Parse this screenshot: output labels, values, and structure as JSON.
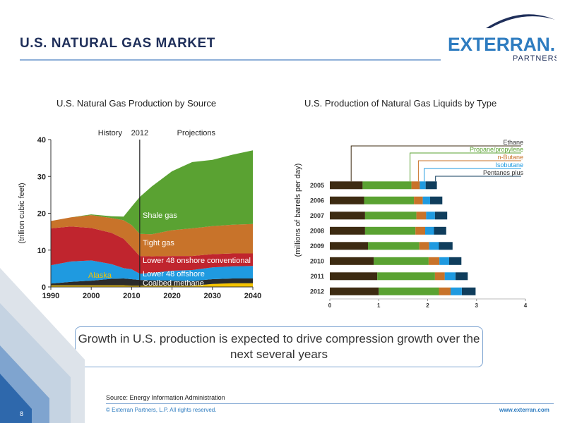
{
  "slide": {
    "title": "U.S. NATURAL GAS MARKET",
    "logo_main": "EXTERRAN.",
    "logo_sub": "PARTNERS",
    "callout": "Growth in U.S. production is expected to drive compression growth over the next several years",
    "source": "Source: Energy Information Administration",
    "copyright": "© Exterran Partners, L.P. All rights reserved.",
    "website": "www.exterran.com",
    "page_number": "8",
    "colors": {
      "brand_blue": "#2e7cc0",
      "title_navy": "#1f2f5a"
    }
  },
  "chart_data": [
    {
      "type": "area",
      "title": "U.S. Natural Gas Production by Source",
      "ylabel": "(trillion cubic feet)",
      "xlim": [
        1990,
        2040
      ],
      "ylim": [
        0,
        40
      ],
      "x_ticks": [
        "1990",
        "2000",
        "2010",
        "2020",
        "2030",
        "2040"
      ],
      "y_ticks": [
        "0",
        "10",
        "20",
        "30",
        "40"
      ],
      "annotations": {
        "history": "History",
        "year": "2012",
        "projections": "Projections",
        "marker_year": 2012
      },
      "x": [
        1990,
        1995,
        2000,
        2005,
        2008,
        2010,
        2012,
        2015,
        2020,
        2025,
        2030,
        2035,
        2040
      ],
      "series": [
        {
          "name": "Alaska",
          "color": "#f5c400",
          "values": [
            0.4,
            0.4,
            0.4,
            0.4,
            0.4,
            0.3,
            0.3,
            0.3,
            0.3,
            0.3,
            0.8,
            1.0,
            1.0
          ]
        },
        {
          "name": "Coalbed methane",
          "color": "#2b2b2b",
          "values": [
            0.5,
            1.0,
            1.3,
            1.8,
            1.9,
            1.8,
            1.6,
            1.5,
            1.4,
            1.3,
            1.3,
            1.3,
            1.3
          ]
        },
        {
          "name": "Lower 48 offshore",
          "color": "#1f9ae0",
          "values": [
            5.0,
            5.5,
            5.5,
            4.0,
            2.8,
            2.7,
            1.7,
            2.0,
            2.7,
            3.0,
            3.2,
            3.3,
            3.4
          ]
        },
        {
          "name": "Lower 48 onshore conventional",
          "color": "#c0252e",
          "values": [
            10.0,
            9.5,
            8.8,
            8.5,
            8.0,
            6.0,
            4.8,
            4.5,
            4.0,
            3.8,
            3.6,
            3.5,
            3.4
          ]
        },
        {
          "name": "Tight gas",
          "color": "#c8732a",
          "values": [
            2.0,
            2.5,
            3.5,
            4.0,
            5.0,
            6.0,
            6.0,
            6.0,
            7.0,
            7.5,
            7.6,
            7.8,
            8.0
          ]
        },
        {
          "name": "Shale gas",
          "color": "#5aa232",
          "values": [
            0.0,
            0.0,
            0.2,
            0.5,
            1.0,
            5.0,
            10.0,
            13.0,
            16.0,
            18.0,
            18.0,
            19.0,
            20.0
          ]
        }
      ]
    },
    {
      "type": "bar",
      "orientation": "horizontal",
      "stacked": true,
      "title": "U.S. Production of Natural Gas Liquids by Type",
      "ylabel": "(millions of barrels per day)",
      "xlim": [
        0,
        4
      ],
      "x_ticks": [
        "0",
        "1",
        "2",
        "3",
        "4"
      ],
      "categories": [
        "2005",
        "2006",
        "2007",
        "2008",
        "2009",
        "2010",
        "2011",
        "2012"
      ],
      "series": [
        {
          "name": "Ethane",
          "color": "#3d2b12",
          "values": [
            0.67,
            0.7,
            0.72,
            0.72,
            0.78,
            0.9,
            0.97,
            1.0
          ]
        },
        {
          "name": "Propane/propylene",
          "color": "#5aa232",
          "values": [
            1.0,
            1.02,
            1.05,
            1.03,
            1.05,
            1.12,
            1.18,
            1.23
          ]
        },
        {
          "name": "n-Butane",
          "color": "#c8732a",
          "values": [
            0.17,
            0.18,
            0.2,
            0.2,
            0.2,
            0.22,
            0.2,
            0.24
          ]
        },
        {
          "name": "Isobutane",
          "color": "#1f9ae0",
          "values": [
            0.12,
            0.15,
            0.18,
            0.18,
            0.2,
            0.2,
            0.22,
            0.23
          ]
        },
        {
          "name": "Pentanes plus",
          "color": "#0f3d5c",
          "values": [
            0.23,
            0.25,
            0.25,
            0.25,
            0.28,
            0.25,
            0.25,
            0.28
          ]
        }
      ]
    }
  ]
}
